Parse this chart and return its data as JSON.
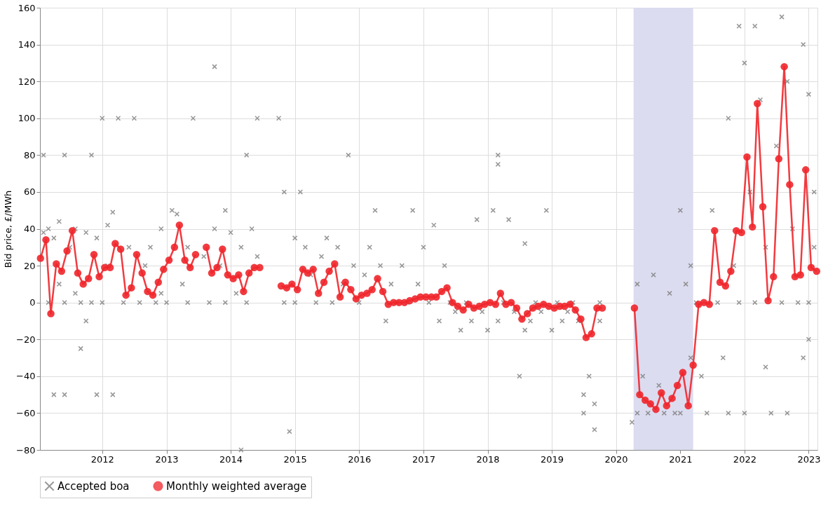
{
  "chart_data": {
    "type": "line",
    "ylabel": "Bid price, £/MWh",
    "xlim": [
      "2011-01-12",
      "2023-02-20"
    ],
    "xticks": [
      "2012",
      "2013",
      "2014",
      "2015",
      "2016",
      "2017",
      "2018",
      "2019",
      "2020",
      "2021",
      "2022",
      "2023"
    ],
    "ylim": [
      -80,
      160
    ],
    "yticks": [
      -80,
      -60,
      -40,
      -20,
      0,
      20,
      40,
      60,
      80,
      100,
      120,
      140,
      160
    ],
    "grid": true,
    "legend": "bottom",
    "bands": [
      {
        "axis": "x",
        "from": "2020-04-10",
        "to": "2021-03-15",
        "color": "#dcdcf0"
      }
    ],
    "series": [
      {
        "name": "Accepted boa",
        "type": "scatter",
        "marker": "cross",
        "color": "#777777",
        "x": [
          "2011-02",
          "2011-02",
          "2011-03",
          "2011-03",
          "2011-04",
          "2011-04",
          "2011-05",
          "2011-05",
          "2011-06",
          "2011-06",
          "2011-06",
          "2011-07",
          "2011-08",
          "2011-08",
          "2011-09",
          "2011-09",
          "2011-10",
          "2011-10",
          "2011-11",
          "2011-11",
          "2011-12",
          "2011-12",
          "2012-01",
          "2012-01",
          "2012-02",
          "2012-02",
          "2012-03",
          "2012-03",
          "2012-04",
          "2012-05",
          "2012-06",
          "2012-07",
          "2012-08",
          "2012-09",
          "2012-10",
          "2012-11",
          "2012-12",
          "2012-12",
          "2013-01",
          "2013-02",
          "2013-03",
          "2013-04",
          "2013-05",
          "2013-05",
          "2013-06",
          "2013-08",
          "2013-09",
          "2013-10",
          "2013-10",
          "2013-11",
          "2013-12",
          "2013-12",
          "2014-01",
          "2014-02",
          "2014-03",
          "2014-03",
          "2014-04",
          "2014-04",
          "2014-05",
          "2014-06",
          "2014-06",
          "2014-10",
          "2014-11",
          "2014-11",
          "2014-12",
          "2015-01",
          "2015-01",
          "2015-02",
          "2015-03",
          "2015-04",
          "2015-05",
          "2015-06",
          "2015-07",
          "2015-08",
          "2015-09",
          "2015-10",
          "2015-11",
          "2015-12",
          "2016-01",
          "2016-02",
          "2016-03",
          "2016-04",
          "2016-05",
          "2016-06",
          "2016-07",
          "2016-08",
          "2016-09",
          "2016-10",
          "2016-11",
          "2016-12",
          "2017-01",
          "2017-02",
          "2017-03",
          "2017-04",
          "2017-05",
          "2017-06",
          "2017-07",
          "2017-08",
          "2017-09",
          "2017-10",
          "2017-11",
          "2017-12",
          "2018-01",
          "2018-02",
          "2018-03",
          "2018-03",
          "2018-03",
          "2018-04",
          "2018-05",
          "2018-06",
          "2018-07",
          "2018-08",
          "2018-08",
          "2018-09",
          "2018-10",
          "2018-11",
          "2018-12",
          "2019-01",
          "2019-02",
          "2019-03",
          "2019-04",
          "2019-05",
          "2019-06",
          "2019-07",
          "2019-07",
          "2019-08",
          "2019-09",
          "2019-09",
          "2019-10",
          "2019-10",
          "2020-04",
          "2020-05",
          "2020-05",
          "2020-06",
          "2020-07",
          "2020-08",
          "2020-09",
          "2020-10",
          "2020-11",
          "2020-12",
          "2021-01",
          "2021-01",
          "2021-02",
          "2021-03",
          "2021-03",
          "2021-04",
          "2021-05",
          "2021-06",
          "2021-07",
          "2021-08",
          "2021-09",
          "2021-10",
          "2021-10",
          "2021-11",
          "2021-12",
          "2021-12",
          "2022-01",
          "2022-01",
          "2022-02",
          "2022-03",
          "2022-03",
          "2022-04",
          "2022-05",
          "2022-05",
          "2022-06",
          "2022-07",
          "2022-08",
          "2022-08",
          "2022-09",
          "2022-09",
          "2022-10",
          "2022-11",
          "2022-12",
          "2022-12",
          "2023-01",
          "2023-01",
          "2023-01",
          "2023-02",
          "2023-02"
        ],
        "values": [
          38,
          80,
          0,
          40,
          -50,
          35,
          44,
          10,
          -50,
          0,
          80,
          30,
          5,
          40,
          -25,
          0,
          38,
          -10,
          80,
          0,
          -50,
          35,
          100,
          0,
          42,
          20,
          -50,
          49,
          100,
          0,
          30,
          100,
          0,
          20,
          30,
          0,
          40,
          5,
          0,
          50,
          48,
          10,
          0,
          30,
          100,
          25,
          0,
          128,
          40,
          20,
          50,
          0,
          38,
          5,
          -80,
          30,
          80,
          0,
          40,
          25,
          100,
          100,
          60,
          0,
          -70,
          35,
          0,
          60,
          30,
          15,
          0,
          25,
          35,
          0,
          30,
          10,
          80,
          20,
          0,
          15,
          30,
          50,
          20,
          -10,
          10,
          0,
          20,
          0,
          50,
          10,
          30,
          0,
          42,
          -10,
          20,
          0,
          -5,
          -15,
          0,
          -10,
          45,
          -5,
          -15,
          50,
          80,
          75,
          -10,
          0,
          45,
          -5,
          -40,
          32,
          -15,
          -10,
          0,
          -5,
          50,
          -15,
          0,
          -10,
          -5,
          0,
          -10,
          -60,
          -50,
          -40,
          -69,
          -55,
          0,
          -10,
          -65,
          -60,
          10,
          -40,
          -60,
          15,
          -45,
          -60,
          5,
          -60,
          50,
          -60,
          10,
          -30,
          20,
          0,
          -40,
          -60,
          50,
          0,
          -30,
          -60,
          100,
          20,
          150,
          0,
          130,
          -60,
          60,
          150,
          0,
          110,
          -35,
          30,
          -60,
          85,
          155,
          0,
          120,
          -60,
          40,
          0,
          140,
          -30,
          -20,
          113,
          0,
          60,
          30
        ]
      },
      {
        "name": "Monthly weighted average",
        "marker": "circle",
        "line_style": "solid",
        "color": "#f0262b",
        "x": [
          "2011-01-15",
          "2011-02-15",
          "2011-03-15",
          "2011-04-15",
          "2011-05-15",
          "2011-06-15",
          "2011-07-15",
          "2011-08-15",
          "2011-09-15",
          "2011-10-15",
          "2011-11-15",
          "2011-12-15",
          "2012-01-15",
          "2012-02-15",
          "2012-03-15",
          "2012-04-15",
          "2012-05-15",
          "2012-06-15",
          "2012-07-15",
          "2012-08-15",
          "2012-09-15",
          "2012-10-15",
          "2012-11-15",
          "2012-12-15",
          "2013-01-15",
          "2013-02-15",
          "2013-03-15",
          "2013-04-15",
          "2013-05-15",
          "2013-06-15",
          "2013-07-15",
          "2013-08-15",
          "2013-09-15",
          "2013-10-15",
          "2013-11-15",
          "2013-12-15",
          "2014-01-15",
          "2014-02-15",
          "2014-03-15",
          "2014-04-15",
          "2014-05-15",
          "2014-06-15",
          "2014-07-15",
          "2014-08-15",
          "2014-09-15",
          "2014-10-15",
          "2014-11-15",
          "2014-12-15",
          "2015-01-15",
          "2015-02-15",
          "2015-03-15",
          "2015-04-15",
          "2015-05-15",
          "2015-06-15",
          "2015-07-15",
          "2015-08-15",
          "2015-09-15",
          "2015-10-15",
          "2015-11-15",
          "2015-12-15",
          "2016-01-15",
          "2016-02-15",
          "2016-03-15",
          "2016-04-15",
          "2016-05-15",
          "2016-06-15",
          "2016-07-15",
          "2016-08-15",
          "2016-09-15",
          "2016-10-15",
          "2016-11-15",
          "2016-12-15",
          "2017-01-15",
          "2017-02-15",
          "2017-03-15",
          "2017-04-15",
          "2017-05-15",
          "2017-06-15",
          "2017-07-15",
          "2017-08-15",
          "2017-09-15",
          "2017-10-15",
          "2017-11-15",
          "2017-12-15",
          "2018-01-15",
          "2018-02-15",
          "2018-03-15",
          "2018-04-15",
          "2018-05-15",
          "2018-06-15",
          "2018-07-15",
          "2018-08-15",
          "2018-09-15",
          "2018-10-15",
          "2018-11-15",
          "2018-12-15",
          "2019-01-15",
          "2019-02-15",
          "2019-03-15",
          "2019-04-15",
          "2019-05-15",
          "2019-06-15",
          "2019-07-15",
          "2019-08-15",
          "2019-09-15",
          "2019-10-15",
          "2019-11-15",
          "2019-12-15",
          "2020-01-15",
          "2020-02-15",
          "2020-03-15",
          "2020-04-15",
          "2020-05-15",
          "2020-06-15",
          "2020-07-15",
          "2020-08-15",
          "2020-09-15",
          "2020-10-15",
          "2020-11-15",
          "2020-12-15",
          "2021-01-15",
          "2021-02-15",
          "2021-03-15",
          "2021-04-15",
          "2021-05-15",
          "2021-06-15",
          "2021-07-15",
          "2021-08-15",
          "2021-09-15",
          "2021-10-15",
          "2021-11-15",
          "2021-12-15",
          "2022-01-15",
          "2022-02-15",
          "2022-03-15",
          "2022-04-15",
          "2022-05-15",
          "2022-06-15",
          "2022-07-15",
          "2022-08-15",
          "2022-09-15",
          "2022-10-15",
          "2022-11-15",
          "2022-12-15",
          "2023-01-15",
          "2023-02-15"
        ],
        "values": [
          24,
          34,
          -6,
          21,
          17,
          28,
          39,
          16,
          10,
          13,
          26,
          14,
          19,
          19,
          32,
          29,
          4,
          8,
          26,
          16,
          6,
          4,
          11,
          18,
          23,
          30,
          42,
          23,
          19,
          26,
          null,
          30,
          16,
          19,
          29,
          15,
          13,
          15,
          6,
          16,
          19,
          19,
          null,
          null,
          null,
          9,
          8,
          10,
          7,
          18,
          16,
          18,
          5,
          11,
          17,
          21,
          3,
          11,
          7,
          2,
          4,
          5,
          7,
          13,
          6,
          -1,
          0,
          0,
          0,
          1,
          2,
          3,
          3,
          3,
          3,
          6,
          8,
          0,
          -2,
          -4,
          -1,
          -3,
          -2,
          -1,
          0,
          -1,
          5,
          -1,
          0,
          -3,
          -9,
          -6,
          -3,
          -2,
          -1,
          -2,
          -3,
          -2,
          -2,
          -1,
          -4,
          -9,
          -19,
          -17,
          -3,
          -3,
          null,
          null,
          null,
          null,
          null,
          -3,
          -50,
          -53,
          -55,
          -58,
          -49,
          -56,
          -52,
          -45,
          -38,
          -56,
          -34,
          -1,
          0,
          -1,
          39,
          11,
          9,
          17,
          39,
          38,
          79,
          41,
          108,
          52,
          1,
          14,
          78,
          128,
          64,
          14,
          15,
          72,
          19,
          17
        ]
      }
    ]
  }
}
